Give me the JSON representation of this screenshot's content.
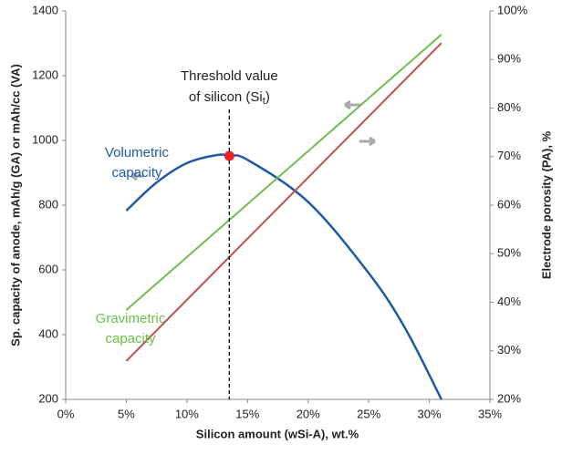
{
  "chart_data": {
    "type": "line",
    "y_label": "Sp. capacity of anode, mAh/g (GA) or mAh/cc (VA)",
    "y2_label": "Electrode porosity (PA), %",
    "x_label": "Silicon amount (wSi-A), wt.%",
    "xlim": [
      0,
      35
    ],
    "xticks": [
      {
        "value": 0,
        "label": "0%"
      },
      {
        "value": 5,
        "label": "5%"
      },
      {
        "value": 10,
        "label": "10%"
      },
      {
        "value": 15,
        "label": "15%"
      },
      {
        "value": 20,
        "label": "20%"
      },
      {
        "value": 25,
        "label": "25%"
      },
      {
        "value": 30,
        "label": "30%"
      },
      {
        "value": 35,
        "label": "35%"
      }
    ],
    "ylim": [
      200,
      1400
    ],
    "yticks": [
      200,
      400,
      600,
      800,
      1000,
      1200,
      1400
    ],
    "y2lim": [
      20,
      100
    ],
    "y2ticks": [
      {
        "value": 20,
        "label": "20%"
      },
      {
        "value": 30,
        "label": "30%"
      },
      {
        "value": 40,
        "label": "40%"
      },
      {
        "value": 50,
        "label": "50%"
      },
      {
        "value": 60,
        "label": "60%"
      },
      {
        "value": 70,
        "label": "70%"
      },
      {
        "value": 80,
        "label": "80%"
      },
      {
        "value": 90,
        "label": "90%"
      },
      {
        "value": 100,
        "label": "100%"
      }
    ],
    "series": [
      {
        "name": [
          "Volumetric",
          "capacity"
        ],
        "color": "#1f5aa6",
        "x": [
          5,
          7.5,
          10,
          12.5,
          13.5,
          15,
          20,
          25,
          28,
          31
        ],
        "values": [
          783,
          870,
          930,
          955,
          952,
          940,
          810,
          590,
          420,
          200
        ]
      },
      {
        "name": [
          "Gravimetric",
          "capacity"
        ],
        "color": "#6cc04a",
        "x": [
          5,
          31
        ],
        "values": [
          476,
          1327
        ]
      },
      {
        "color": "#c0504d",
        "axis": "y2",
        "x": [
          5,
          31
        ],
        "values": [
          27.9,
          93.4
        ]
      }
    ],
    "threshold": {
      "x": 13.5,
      "y": 952,
      "color": "#e8222a",
      "line1": "Threshold value",
      "line2": "of silicon (Si",
      "sub": "t",
      "close": ")"
    }
  }
}
